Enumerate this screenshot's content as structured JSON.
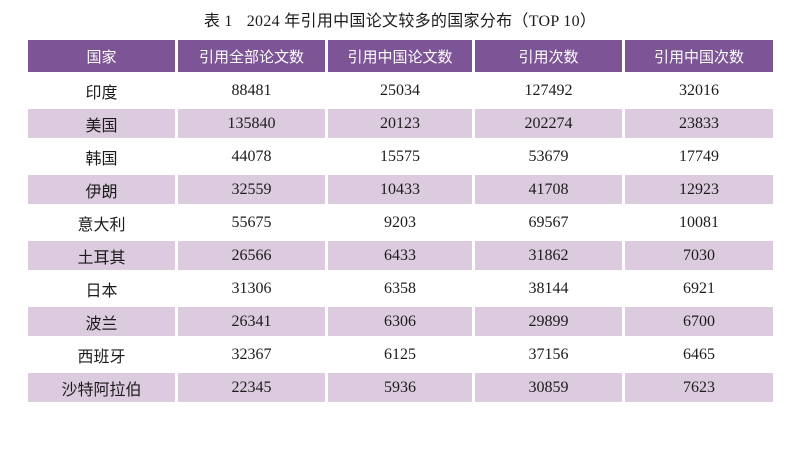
{
  "caption": {
    "label": "表 1",
    "text": "2024 年引用中国论文较多的国家分布（TOP 10）"
  },
  "table": {
    "columns": [
      "国家",
      "引用全部论文数",
      "引用中国论文数",
      "引用次数",
      "引用中国次数"
    ],
    "rows": [
      [
        "印度",
        "88481",
        "25034",
        "127492",
        "32016"
      ],
      [
        "美国",
        "135840",
        "20123",
        "202274",
        "23833"
      ],
      [
        "韩国",
        "44078",
        "15575",
        "53679",
        "17749"
      ],
      [
        "伊朗",
        "32559",
        "10433",
        "41708",
        "12923"
      ],
      [
        "意大利",
        "55675",
        "9203",
        "69567",
        "10081"
      ],
      [
        "土耳其",
        "26566",
        "6433",
        "31862",
        "7030"
      ],
      [
        "日本",
        "31306",
        "6358",
        "38144",
        "6921"
      ],
      [
        "波兰",
        "26341",
        "6306",
        "29899",
        "6700"
      ],
      [
        "西班牙",
        "32367",
        "6125",
        "37156",
        "6465"
      ],
      [
        "沙特阿拉伯",
        "22345",
        "5936",
        "30859",
        "7623"
      ]
    ]
  },
  "colors": {
    "header_bg": "#7d5596",
    "header_text": "#ffffff",
    "row_alt_bg": "#dccade",
    "text": "#1c1c1c",
    "page_bg": "#ffffff"
  }
}
